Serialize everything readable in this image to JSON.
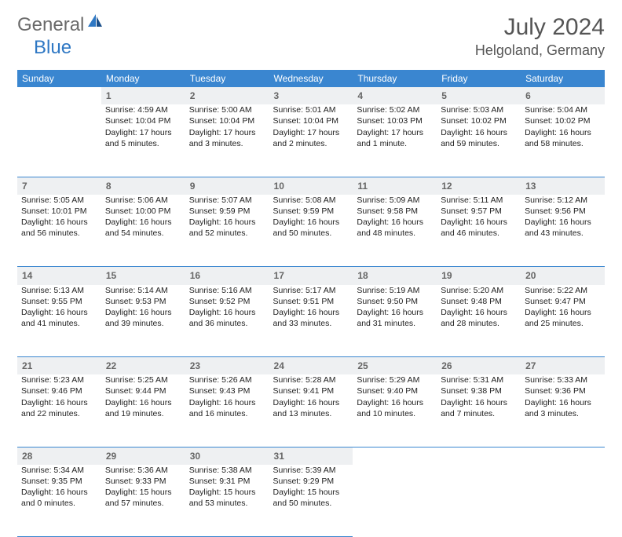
{
  "logo": {
    "general": "General",
    "blue": "Blue"
  },
  "title": "July 2024",
  "location": "Helgoland, Germany",
  "header_color": "#3a86d0",
  "daynum_bg": "#eef0f2",
  "border_color": "#3a86d0",
  "columns": [
    "Sunday",
    "Monday",
    "Tuesday",
    "Wednesday",
    "Thursday",
    "Friday",
    "Saturday"
  ],
  "weeks": [
    {
      "nums": [
        "",
        "1",
        "2",
        "3",
        "4",
        "5",
        "6"
      ],
      "cells": [
        "",
        "Sunrise: 4:59 AM\nSunset: 10:04 PM\nDaylight: 17 hours and 5 minutes.",
        "Sunrise: 5:00 AM\nSunset: 10:04 PM\nDaylight: 17 hours and 3 minutes.",
        "Sunrise: 5:01 AM\nSunset: 10:04 PM\nDaylight: 17 hours and 2 minutes.",
        "Sunrise: 5:02 AM\nSunset: 10:03 PM\nDaylight: 17 hours and 1 minute.",
        "Sunrise: 5:03 AM\nSunset: 10:02 PM\nDaylight: 16 hours and 59 minutes.",
        "Sunrise: 5:04 AM\nSunset: 10:02 PM\nDaylight: 16 hours and 58 minutes."
      ]
    },
    {
      "nums": [
        "7",
        "8",
        "9",
        "10",
        "11",
        "12",
        "13"
      ],
      "cells": [
        "Sunrise: 5:05 AM\nSunset: 10:01 PM\nDaylight: 16 hours and 56 minutes.",
        "Sunrise: 5:06 AM\nSunset: 10:00 PM\nDaylight: 16 hours and 54 minutes.",
        "Sunrise: 5:07 AM\nSunset: 9:59 PM\nDaylight: 16 hours and 52 minutes.",
        "Sunrise: 5:08 AM\nSunset: 9:59 PM\nDaylight: 16 hours and 50 minutes.",
        "Sunrise: 5:09 AM\nSunset: 9:58 PM\nDaylight: 16 hours and 48 minutes.",
        "Sunrise: 5:11 AM\nSunset: 9:57 PM\nDaylight: 16 hours and 46 minutes.",
        "Sunrise: 5:12 AM\nSunset: 9:56 PM\nDaylight: 16 hours and 43 minutes."
      ]
    },
    {
      "nums": [
        "14",
        "15",
        "16",
        "17",
        "18",
        "19",
        "20"
      ],
      "cells": [
        "Sunrise: 5:13 AM\nSunset: 9:55 PM\nDaylight: 16 hours and 41 minutes.",
        "Sunrise: 5:14 AM\nSunset: 9:53 PM\nDaylight: 16 hours and 39 minutes.",
        "Sunrise: 5:16 AM\nSunset: 9:52 PM\nDaylight: 16 hours and 36 minutes.",
        "Sunrise: 5:17 AM\nSunset: 9:51 PM\nDaylight: 16 hours and 33 minutes.",
        "Sunrise: 5:19 AM\nSunset: 9:50 PM\nDaylight: 16 hours and 31 minutes.",
        "Sunrise: 5:20 AM\nSunset: 9:48 PM\nDaylight: 16 hours and 28 minutes.",
        "Sunrise: 5:22 AM\nSunset: 9:47 PM\nDaylight: 16 hours and 25 minutes."
      ]
    },
    {
      "nums": [
        "21",
        "22",
        "23",
        "24",
        "25",
        "26",
        "27"
      ],
      "cells": [
        "Sunrise: 5:23 AM\nSunset: 9:46 PM\nDaylight: 16 hours and 22 minutes.",
        "Sunrise: 5:25 AM\nSunset: 9:44 PM\nDaylight: 16 hours and 19 minutes.",
        "Sunrise: 5:26 AM\nSunset: 9:43 PM\nDaylight: 16 hours and 16 minutes.",
        "Sunrise: 5:28 AM\nSunset: 9:41 PM\nDaylight: 16 hours and 13 minutes.",
        "Sunrise: 5:29 AM\nSunset: 9:40 PM\nDaylight: 16 hours and 10 minutes.",
        "Sunrise: 5:31 AM\nSunset: 9:38 PM\nDaylight: 16 hours and 7 minutes.",
        "Sunrise: 5:33 AM\nSunset: 9:36 PM\nDaylight: 16 hours and 3 minutes."
      ]
    },
    {
      "nums": [
        "28",
        "29",
        "30",
        "31",
        "",
        "",
        ""
      ],
      "cells": [
        "Sunrise: 5:34 AM\nSunset: 9:35 PM\nDaylight: 16 hours and 0 minutes.",
        "Sunrise: 5:36 AM\nSunset: 9:33 PM\nDaylight: 15 hours and 57 minutes.",
        "Sunrise: 5:38 AM\nSunset: 9:31 PM\nDaylight: 15 hours and 53 minutes.",
        "Sunrise: 5:39 AM\nSunset: 9:29 PM\nDaylight: 15 hours and 50 minutes.",
        "",
        "",
        ""
      ]
    }
  ]
}
